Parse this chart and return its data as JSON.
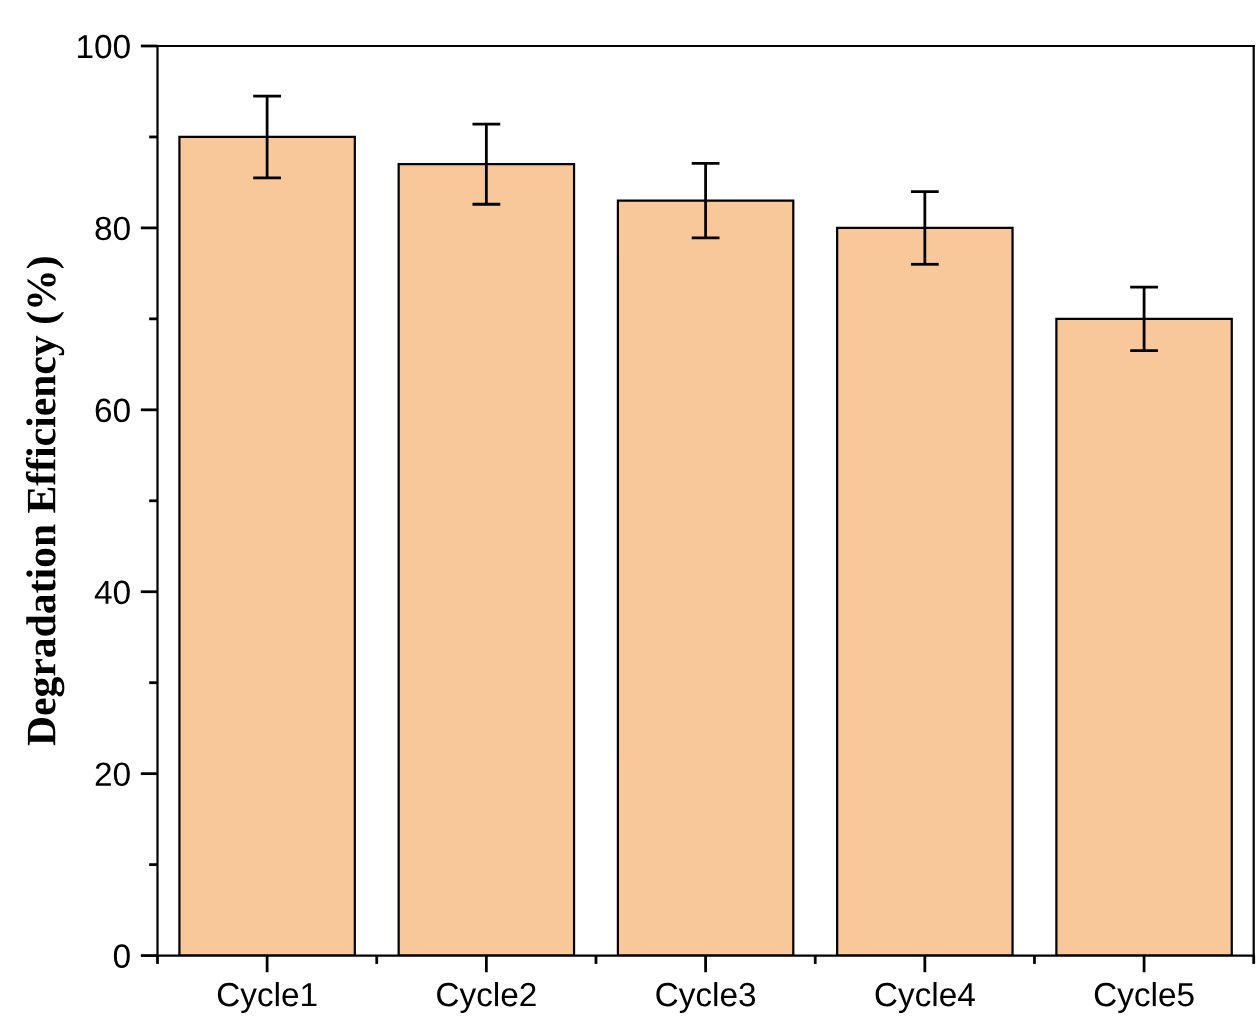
{
  "chart_data": {
    "type": "bar",
    "ylabel": "Degradation Efficiency (%)",
    "categories": [
      "Cycle1",
      "Cycle2",
      "Cycle3",
      "Cycle4",
      "Cycle5"
    ],
    "values": [
      90,
      87,
      83,
      80,
      70
    ],
    "errors": [
      4.5,
      4.4,
      4.1,
      4,
      3.5
    ],
    "color": "#f9c89a",
    "ylim": [
      0,
      100
    ],
    "yticks": [
      0,
      20,
      40,
      60,
      80,
      100
    ],
    "grid": false,
    "legend": false
  }
}
